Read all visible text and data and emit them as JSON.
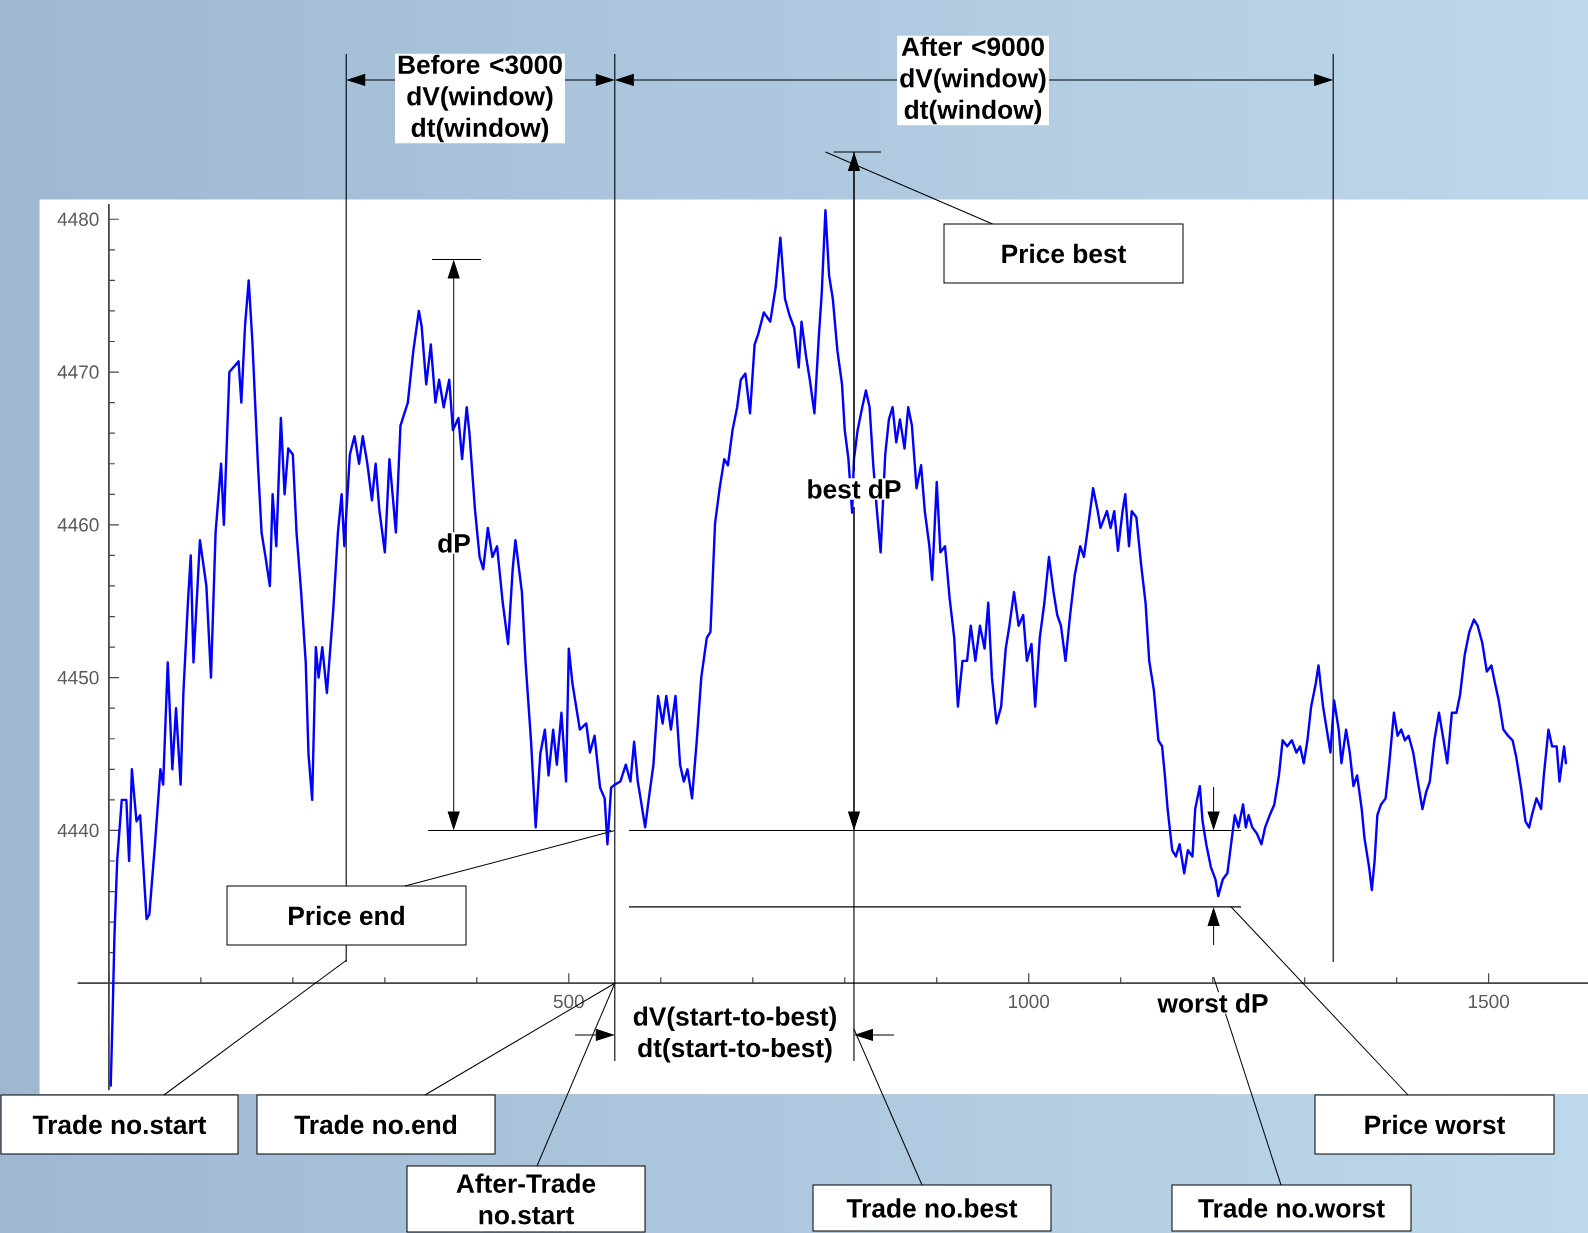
{
  "chart_data": {
    "type": "line",
    "x": [
      2,
      4,
      6,
      9,
      14,
      19,
      22,
      25,
      30,
      34,
      41,
      44,
      50,
      56,
      59,
      64,
      69,
      73,
      78,
      81,
      86,
      89,
      92,
      99,
      106,
      111,
      116,
      122,
      125,
      131,
      141,
      144,
      148,
      152,
      156,
      162,
      166,
      170,
      175,
      178,
      182,
      187,
      191,
      195,
      200,
      204,
      209,
      214,
      217,
      221,
      225,
      228,
      232,
      237,
      244,
      249,
      253,
      256,
      262,
      267,
      272,
      276,
      281,
      286,
      290,
      294,
      300,
      305,
      309,
      312,
      317,
      325,
      331,
      337,
      340,
      345,
      350,
      355,
      359,
      364,
      370,
      374,
      380,
      384,
      389,
      392,
      398,
      403,
      407,
      412,
      417,
      422,
      428,
      434,
      439,
      442,
      449,
      453,
      459,
      464,
      469,
      474,
      478,
      483,
      487,
      492,
      497,
      500,
      504,
      512,
      519,
      523,
      528,
      534,
      539,
      542,
      546,
      550,
      556,
      562,
      567,
      571,
      575,
      578,
      583,
      587,
      592,
      597,
      602,
      606,
      611,
      616,
      621,
      625,
      629,
      634,
      639,
      644,
      650,
      654,
      659,
      664,
      669,
      673,
      678,
      683,
      687,
      692,
      697,
      702,
      706,
      712,
      719,
      725,
      730,
      735,
      740,
      745,
      750,
      753,
      758,
      762,
      767,
      772,
      775,
      779,
      783,
      787,
      792,
      797,
      800,
      804,
      808,
      810,
      814,
      819,
      823,
      827,
      831,
      835,
      839,
      844,
      848,
      852,
      856,
      860,
      865,
      869,
      873,
      878,
      883,
      887,
      892,
      895,
      900,
      904,
      909,
      914,
      919,
      923,
      928,
      933,
      937,
      942,
      947,
      952,
      956,
      960,
      965,
      970,
      975,
      979,
      984,
      989,
      994,
      998,
      1003,
      1007,
      1012,
      1017,
      1022,
      1027,
      1031,
      1035,
      1040,
      1045,
      1050,
      1056,
      1060,
      1065,
      1070,
      1075,
      1078,
      1085,
      1089,
      1093,
      1097,
      1102,
      1105,
      1109,
      1112,
      1117,
      1122,
      1127,
      1131,
      1136,
      1141,
      1145,
      1148,
      1151,
      1156,
      1160,
      1164,
      1169,
      1173,
      1178,
      1181,
      1186,
      1189,
      1193,
      1198,
      1203,
      1206,
      1211,
      1216,
      1220,
      1224,
      1228,
      1233,
      1236,
      1239,
      1243,
      1248,
      1253,
      1257,
      1262,
      1267,
      1272,
      1276,
      1281,
      1286,
      1291,
      1295,
      1299,
      1303,
      1307,
      1312,
      1315,
      1320,
      1324,
      1328,
      1332,
      1337,
      1340,
      1345,
      1349,
      1353,
      1357,
      1362,
      1365,
      1370,
      1373,
      1376,
      1379,
      1383,
      1388,
      1392,
      1397,
      1401,
      1405,
      1409,
      1413,
      1418,
      1423,
      1428,
      1432,
      1436,
      1441,
      1446,
      1451,
      1455,
      1460,
      1465,
      1469,
      1474,
      1479,
      1484,
      1488,
      1493,
      1498,
      1503,
      1507,
      1511,
      1516,
      1521,
      1526,
      1530,
      1535,
      1540,
      1544,
      1547,
      1552,
      1557,
      1560,
      1565,
      1569,
      1574,
      1577,
      1582,
      1584
    ],
    "values": [
      4423.3,
      4427.8,
      4433,
      4438,
      4442,
      4442,
      4438,
      4444,
      4440.6,
      4441,
      4434.2,
      4434.5,
      4439,
      4444,
      4443,
      4451,
      4444,
      4448,
      4443,
      4449,
      4455,
      4458,
      4451,
      4459,
      4456,
      4450,
      4459.5,
      4464,
      4460,
      4470,
      4470.7,
      4468,
      4473,
      4476,
      4472,
      4464,
      4459.5,
      4458,
      4456,
      4462,
      4458.6,
      4467,
      4462,
      4465,
      4464.6,
      4459.5,
      4455.6,
      4451,
      4445,
      4442,
      4452,
      4450,
      4452,
      4449,
      4454.5,
      4459.5,
      4462,
      4458.6,
      4464.6,
      4465.8,
      4464,
      4465.8,
      4464,
      4461.6,
      4464,
      4461,
      4458.2,
      4464.3,
      4461.6,
      4459.5,
      4466.5,
      4468,
      4471.4,
      4474,
      4473,
      4469.2,
      4471.8,
      4468,
      4469.5,
      4467.7,
      4469.5,
      4466.2,
      4467,
      4464.3,
      4467.7,
      4466,
      4461,
      4457.9,
      4457.1,
      4459.8,
      4457.9,
      4458.6,
      4455,
      4452.2,
      4457.1,
      4459,
      4455.6,
      4451,
      4445.8,
      4440.2,
      4445,
      4446.6,
      4443.6,
      4446.6,
      4444.3,
      4447.7,
      4443.2,
      4451.9,
      4449.6,
      4446.6,
      4447,
      4445.1,
      4446.2,
      4442.8,
      4442.1,
      4439.1,
      4442.8,
      4443,
      4443.2,
      4444.3,
      4443.2,
      4445.8,
      4443.2,
      4442.1,
      4440.2,
      4442.1,
      4444.3,
      4448.8,
      4447,
      4448.8,
      4446.6,
      4448.8,
      4444.3,
      4443.2,
      4444,
      4442.1,
      4445.8,
      4450,
      4452.6,
      4453,
      4460.1,
      4462.4,
      4464.3,
      4463.9,
      4466.2,
      4467.7,
      4469.5,
      4469.9,
      4467.3,
      4471.8,
      4472.5,
      4473.9,
      4473.3,
      4475.6,
      4478.8,
      4474.8,
      4473.7,
      4472.9,
      4470.3,
      4473.3,
      4471,
      4469.5,
      4467.3,
      4472.5,
      4475.2,
      4480.6,
      4476.3,
      4474.8,
      4471.4,
      4469.2,
      4466.2,
      4464.3,
      4460.8,
      4464.3,
      4466.2,
      4467.7,
      4468.8,
      4467.7,
      4463.9,
      4460.9,
      4458.2,
      4464.6,
      4466.9,
      4467.7,
      4465.4,
      4466.9,
      4465,
      4467.7,
      4466.5,
      4462.4,
      4463.9,
      4460.9,
      4458.6,
      4456.4,
      4462.8,
      4458.2,
      4458.6,
      4455.2,
      4452.6,
      4448.1,
      4451.1,
      4451.1,
      4453.4,
      4451.1,
      4453.4,
      4451.9,
      4454.9,
      4450,
      4447,
      4448.1,
      4451.9,
      4453.4,
      4455.6,
      4453.4,
      4454.1,
      4451.1,
      4452.2,
      4448.1,
      4452.6,
      4454.9,
      4457.9,
      4455.6,
      4454.1,
      4453.4,
      4451.1,
      4454.1,
      4456.7,
      4458.6,
      4457.9,
      4460.1,
      4462.4,
      4460.9,
      4459.8,
      4460.9,
      4459.8,
      4460.9,
      4458.3,
      4460.9,
      4462,
      4458.6,
      4460.9,
      4460.5,
      4457.5,
      4454.9,
      4451.1,
      4449.2,
      4445.9,
      4445.5,
      4443.6,
      4441.4,
      4438.7,
      4438.3,
      4439.1,
      4437.2,
      4438.7,
      4438.3,
      4441.4,
      4442.9,
      4440.6,
      4439.1,
      4437.6,
      4436.8,
      4435.7,
      4436.8,
      4437.2,
      4439.1,
      4441,
      4440.2,
      4441.7,
      4440.2,
      4441,
      4440.2,
      4439.8,
      4439.1,
      4440.2,
      4441,
      4441.7,
      4443.6,
      4445.9,
      4445.5,
      4445.9,
      4445.1,
      4445.5,
      4444.4,
      4445.9,
      4448.1,
      4449.6,
      4450.8,
      4448.1,
      4446.6,
      4445.1,
      4448.5,
      4446.6,
      4444.4,
      4446.6,
      4445.1,
      4442.9,
      4443.6,
      4441.4,
      4439.5,
      4437.6,
      4436.1,
      4438,
      4441,
      4441.7,
      4442.1,
      4444.4,
      4447.7,
      4446.2,
      4446.6,
      4445.9,
      4446.2,
      4445.1,
      4443.2,
      4441.4,
      4442.5,
      4443.2,
      4445.9,
      4447.7,
      4445.9,
      4444.4,
      4447.7,
      4447.7,
      4448.9,
      4451.5,
      4453,
      4453.8,
      4453.4,
      4452.3,
      4450.4,
      4450.8,
      4449.6,
      4448.5,
      4446.6,
      4446.2,
      4445.9,
      4444.8,
      4442.9,
      4440.6,
      4440.2,
      4441,
      4442.1,
      4441.4,
      4443.6,
      4446.6,
      4445.5,
      4445.5,
      4443.2,
      4445.5,
      4444.4
    ],
    "color": "#0000ff",
    "xlim": [
      -34,
      1608
    ],
    "ylim": [
      4423,
      4481
    ],
    "xticks": [
      {
        "value": 0,
        "label": null
      },
      500,
      1000,
      1500
    ],
    "yticks": [
      {
        "value": 4430,
        "label": null
      },
      4440,
      4450,
      4460,
      4470,
      4480
    ],
    "ref_lines": [
      {
        "axis": "x",
        "value": 258
      },
      {
        "axis": "x",
        "value": 550
      },
      {
        "axis": "x",
        "value": 810
      },
      {
        "axis": "x",
        "value": 1331
      },
      {
        "axis": "y",
        "value": 4440
      },
      {
        "axis": "y",
        "value": 4435
      }
    ],
    "annotations": [
      "Before <3000 dV(window) dt(window)",
      "After <9000 dV(window) dt(window)",
      "Price best",
      "dP",
      "best dP",
      {
        "text": "Price end",
        "x": 550,
        "y": 4440
      },
      {
        "text": "Trade no.start",
        "x": 258,
        "y": 4431.5
      },
      {
        "text": "Trade no.end",
        "x": 550,
        "y": 4430
      },
      "dV(start-to-best) dt(start-to-best)",
      "worst dP",
      {
        "text": "Price worst",
        "x": 1220,
        "y": 4435
      },
      {
        "text": "After-Trade no.start",
        "x": 550,
        "y": 4430
      },
      {
        "text": "Trade no.best",
        "x": 810,
        "y": 4427
      },
      "Trade no.worst"
    ]
  }
}
